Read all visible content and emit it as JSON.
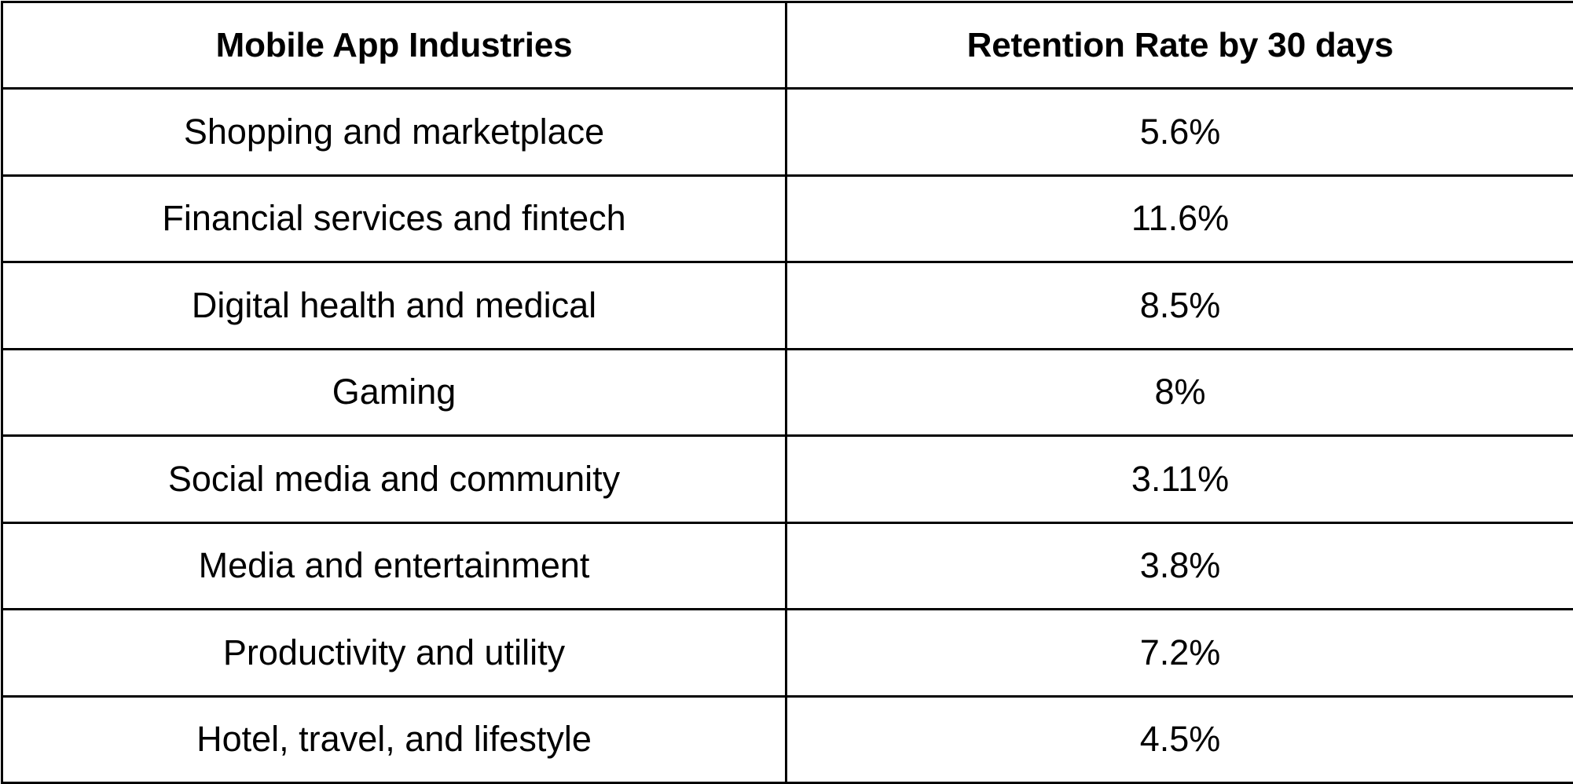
{
  "table": {
    "headers": [
      "Mobile App Industries",
      "Retention Rate by 30 days"
    ],
    "rows": [
      [
        "Shopping and marketplace",
        "5.6%"
      ],
      [
        "Financial services and fintech",
        "11.6%"
      ],
      [
        "Digital health and medical",
        "8.5%"
      ],
      [
        "Gaming",
        "8%"
      ],
      [
        "Social media and community",
        "3.11%"
      ],
      [
        "Media and entertainment",
        "3.8%"
      ],
      [
        "Productivity and utility",
        "7.2%"
      ],
      [
        "Hotel, travel, and lifestyle",
        "4.5%"
      ]
    ]
  },
  "colors": {
    "border": "#000000",
    "text": "#000000",
    "background": "#ffffff"
  }
}
